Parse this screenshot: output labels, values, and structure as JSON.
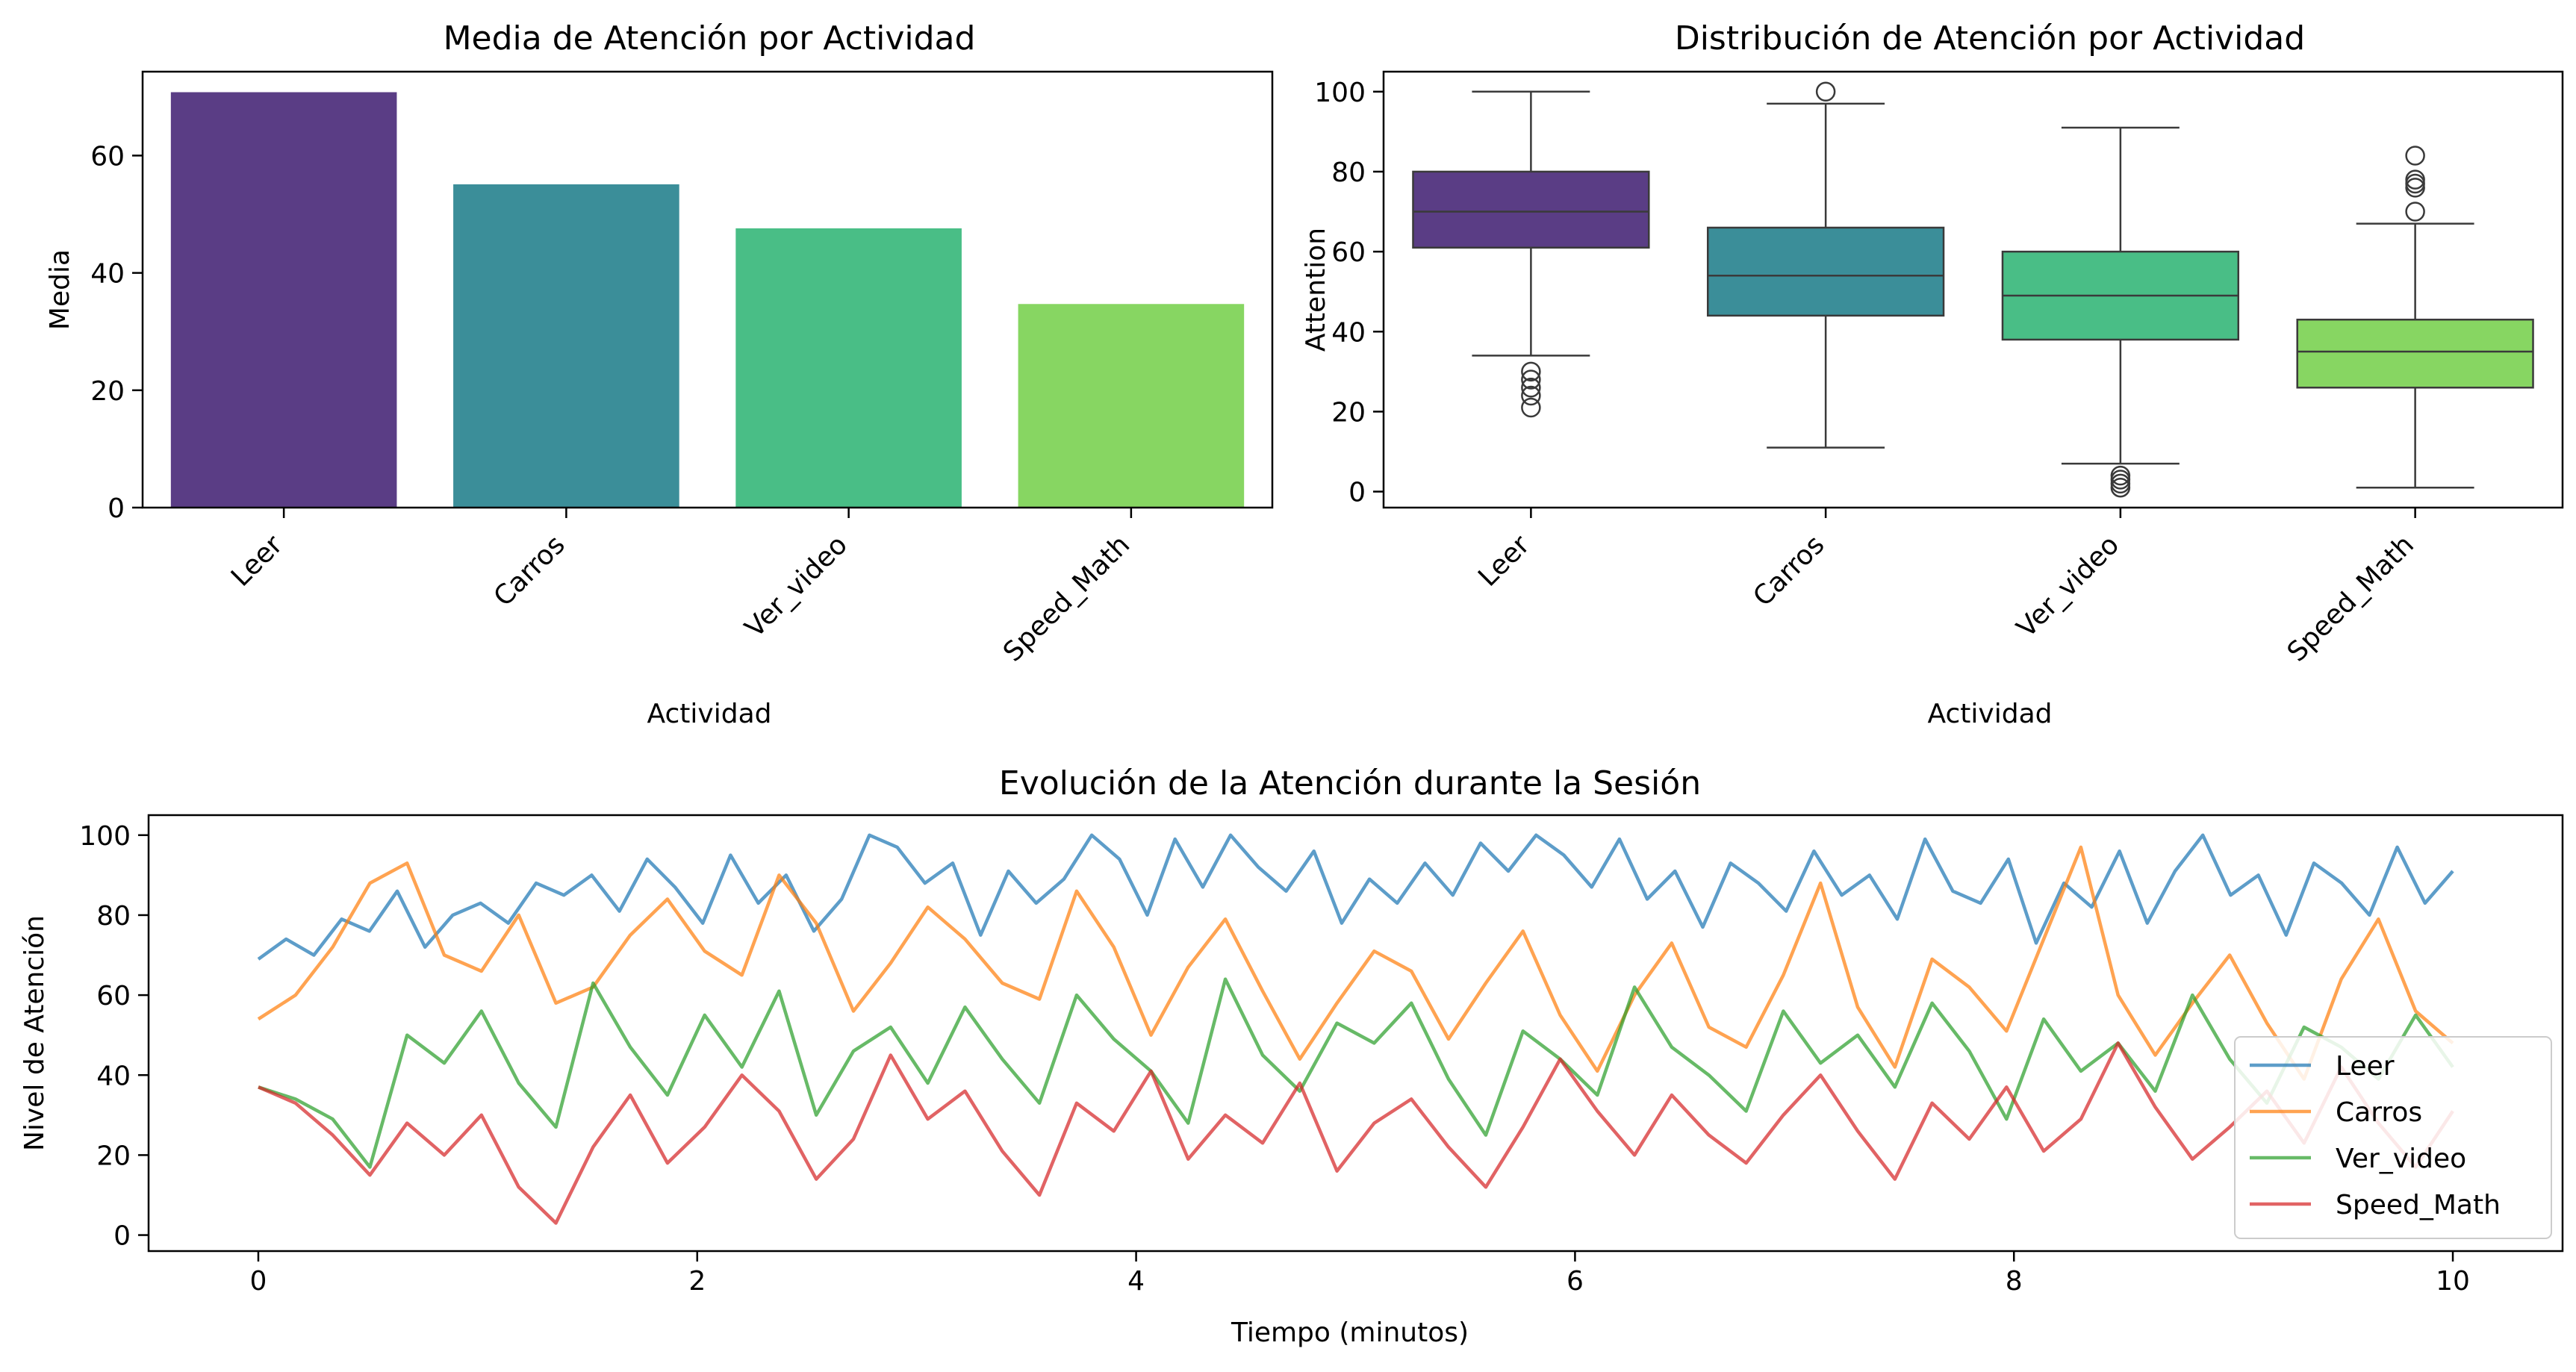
{
  "chart_data": [
    {
      "type": "bar",
      "title": "Media de Atención por Actividad",
      "xlabel": "Actividad",
      "ylabel": "Media",
      "categories": [
        "Leer",
        "Carros",
        "Ver_video",
        "Speed_Math"
      ],
      "values": [
        70.8,
        55.1,
        47.6,
        34.7
      ],
      "colors": [
        "#482878",
        "#26828e",
        "#35b779",
        "#7ad151"
      ],
      "ylim": [
        0,
        74.3
      ],
      "yticks": [
        0,
        20,
        40,
        60
      ],
      "grid": false
    },
    {
      "type": "box",
      "title": "Distribución de Atención por Actividad",
      "xlabel": "Actividad",
      "ylabel": "Attention",
      "categories": [
        "Leer",
        "Carros",
        "Ver_video",
        "Speed_Math"
      ],
      "boxes": [
        {
          "whislo": 34,
          "q1": 61,
          "med": 70,
          "q3": 80,
          "whishi": 100,
          "fliers": [
            30,
            28,
            26,
            24,
            21
          ]
        },
        {
          "whislo": 11,
          "q1": 44,
          "med": 54,
          "q3": 66,
          "whishi": 97,
          "fliers": [
            100
          ]
        },
        {
          "whislo": 7,
          "q1": 38,
          "med": 49,
          "q3": 60,
          "whishi": 91,
          "fliers": [
            4,
            3,
            2,
            1
          ]
        },
        {
          "whislo": 1,
          "q1": 26,
          "med": 35,
          "q3": 43,
          "whishi": 67,
          "fliers": [
            70,
            76,
            77,
            78,
            84
          ]
        }
      ],
      "colors": [
        "#482878",
        "#26828e",
        "#35b779",
        "#7ad151"
      ],
      "ylim": [
        -4,
        105
      ],
      "yticks": [
        0,
        20,
        40,
        60,
        80,
        100
      ],
      "grid": false
    },
    {
      "type": "line",
      "title": "Evolución de la Atención durante la Sesión",
      "xlabel": "Tiempo (minutos)",
      "ylabel": "Nivel de Atención",
      "xlim": [
        -0.5,
        10.5
      ],
      "ylim": [
        -4,
        105
      ],
      "xticks": [
        0,
        2,
        4,
        6,
        8,
        10
      ],
      "yticks": [
        0,
        20,
        40,
        60,
        80,
        100
      ],
      "legend": "lower-right",
      "grid": false,
      "series": [
        {
          "name": "Leer",
          "color": "#1f77b4",
          "mean": 70,
          "x_start": 0,
          "x_end": 10,
          "y": [
            69,
            74,
            70,
            79,
            76,
            86,
            72,
            80,
            83,
            78,
            88,
            85,
            90,
            81,
            94,
            87,
            78,
            95,
            83,
            90,
            76,
            84,
            100,
            97,
            88,
            93,
            75,
            91,
            83,
            89,
            100,
            94,
            80,
            99,
            87,
            100,
            92,
            86,
            96,
            78,
            89,
            83,
            93,
            85,
            98,
            91,
            100,
            95,
            87,
            99,
            84,
            91,
            77,
            93,
            88,
            81,
            96,
            85,
            90,
            79,
            99,
            86,
            83,
            94,
            73,
            88,
            82,
            96,
            78,
            91,
            100,
            85,
            90,
            75,
            93,
            88,
            80,
            97,
            83,
            91
          ]
        },
        {
          "name": "Carros",
          "color": "#ff7f0e",
          "mean": 55,
          "x_start": 0,
          "x_end": 10,
          "y": [
            54,
            60,
            72,
            88,
            93,
            70,
            66,
            80,
            58,
            62,
            75,
            84,
            71,
            65,
            90,
            78,
            56,
            68,
            82,
            74,
            63,
            59,
            86,
            72,
            50,
            67,
            79,
            61,
            44,
            58,
            71,
            66,
            49,
            63,
            76,
            55,
            41,
            60,
            73,
            52,
            47,
            65,
            88,
            57,
            42,
            69,
            62,
            51,
            74,
            97,
            60,
            45,
            58,
            70,
            53,
            39,
            64,
            79,
            56,
            48
          ]
        },
        {
          "name": "Ver_video",
          "color": "#2ca02c",
          "mean": 47,
          "x_start": 0,
          "x_end": 10,
          "y": [
            37,
            34,
            29,
            17,
            50,
            43,
            56,
            38,
            27,
            63,
            47,
            35,
            55,
            42,
            61,
            30,
            46,
            52,
            38,
            57,
            44,
            33,
            60,
            49,
            41,
            28,
            64,
            45,
            36,
            53,
            48,
            58,
            39,
            25,
            51,
            44,
            35,
            62,
            47,
            40,
            31,
            56,
            43,
            50,
            37,
            58,
            46,
            29,
            54,
            41,
            48,
            36,
            60,
            44,
            33,
            52,
            47,
            39,
            55,
            42
          ]
        },
        {
          "name": "Speed_Math",
          "color": "#d62728",
          "mean": 35,
          "x_start": 0,
          "x_end": 10,
          "y": [
            37,
            33,
            25,
            15,
            28,
            20,
            30,
            12,
            3,
            22,
            35,
            18,
            27,
            40,
            31,
            14,
            24,
            45,
            29,
            36,
            21,
            10,
            33,
            26,
            41,
            19,
            30,
            23,
            38,
            16,
            28,
            34,
            22,
            12,
            27,
            44,
            31,
            20,
            35,
            25,
            18,
            30,
            40,
            26,
            14,
            33,
            24,
            37,
            21,
            29,
            48,
            32,
            19,
            27,
            36,
            23,
            42,
            28,
            17,
            31
          ]
        }
      ]
    }
  ]
}
